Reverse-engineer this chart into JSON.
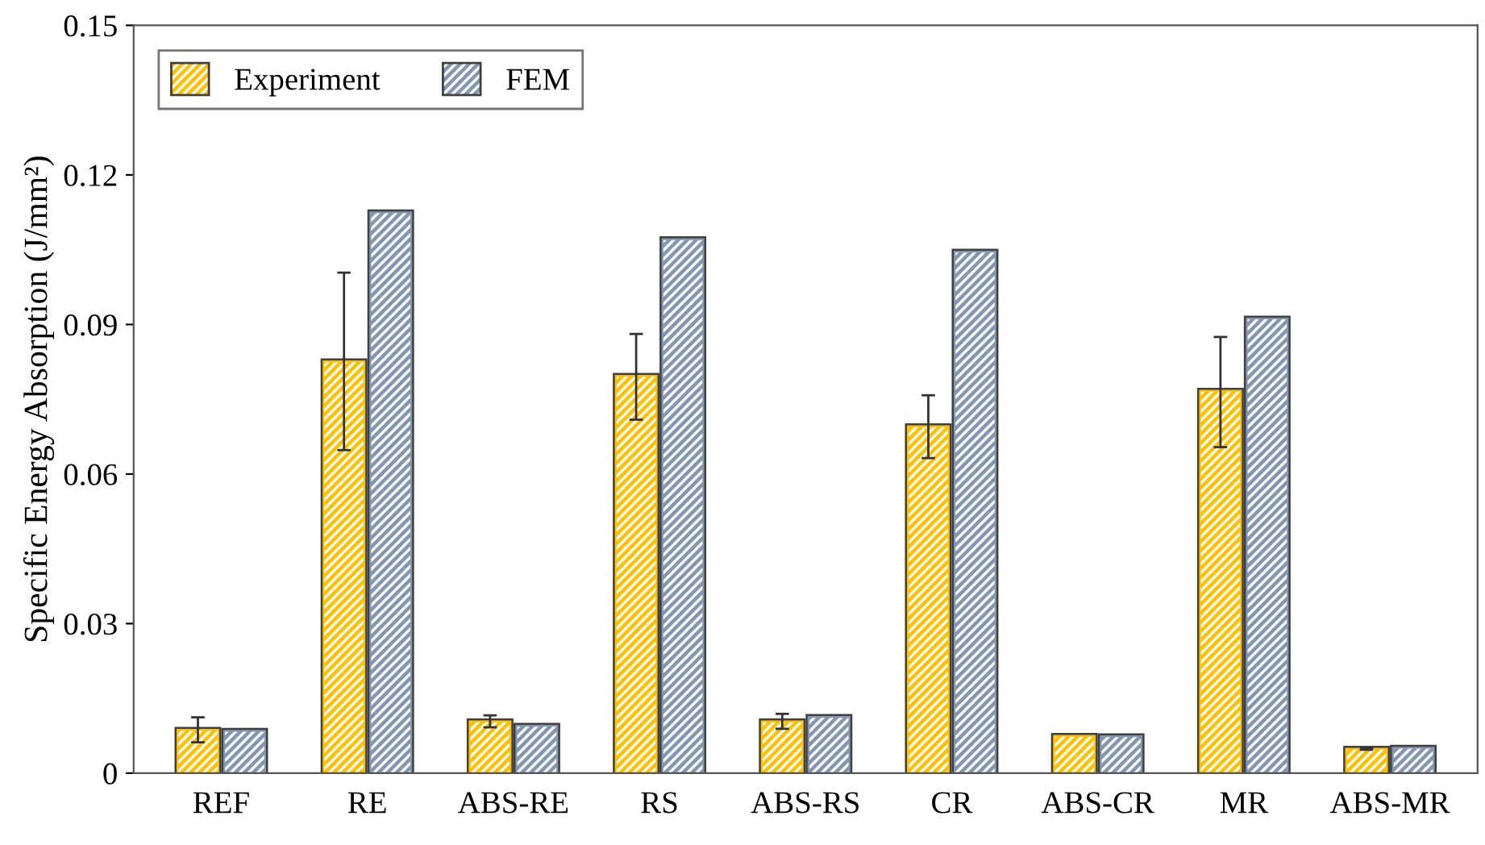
{
  "chart_data": {
    "type": "bar",
    "ylabel": "Specific Energy Absorption (J/mm²)",
    "categories": [
      "REF",
      "RE",
      "ABS-RE",
      "RS",
      "ABS-RS",
      "CR",
      "ABS-CR",
      "MR",
      "ABS-MR"
    ],
    "series": [
      {
        "name": "Experiment",
        "color": "#ffc000",
        "values": [
          0.0087,
          0.0826,
          0.0104,
          0.0797,
          0.0104,
          0.0696,
          0.0075,
          0.0767,
          0.0049
        ],
        "errors": [
          0.0025,
          [
            0.0648,
            0.1004
          ],
          0.0012,
          [
            0.0709,
            0.0881
          ],
          0.0015,
          [
            0.0632,
            0.0758
          ],
          null,
          [
            0.0654,
            0.0875
          ],
          0.0002
        ]
      },
      {
        "name": "FEM",
        "color": "#8497b0",
        "values": [
          0.0085,
          0.1125,
          0.0095,
          0.1071,
          0.0113,
          0.1046,
          0.0074,
          0.0912,
          0.0051
        ]
      }
    ],
    "ylim": [
      0,
      0.15
    ],
    "yticks": [
      0,
      0.03,
      0.06,
      0.09,
      0.12,
      0.15
    ],
    "legend": "top left"
  }
}
